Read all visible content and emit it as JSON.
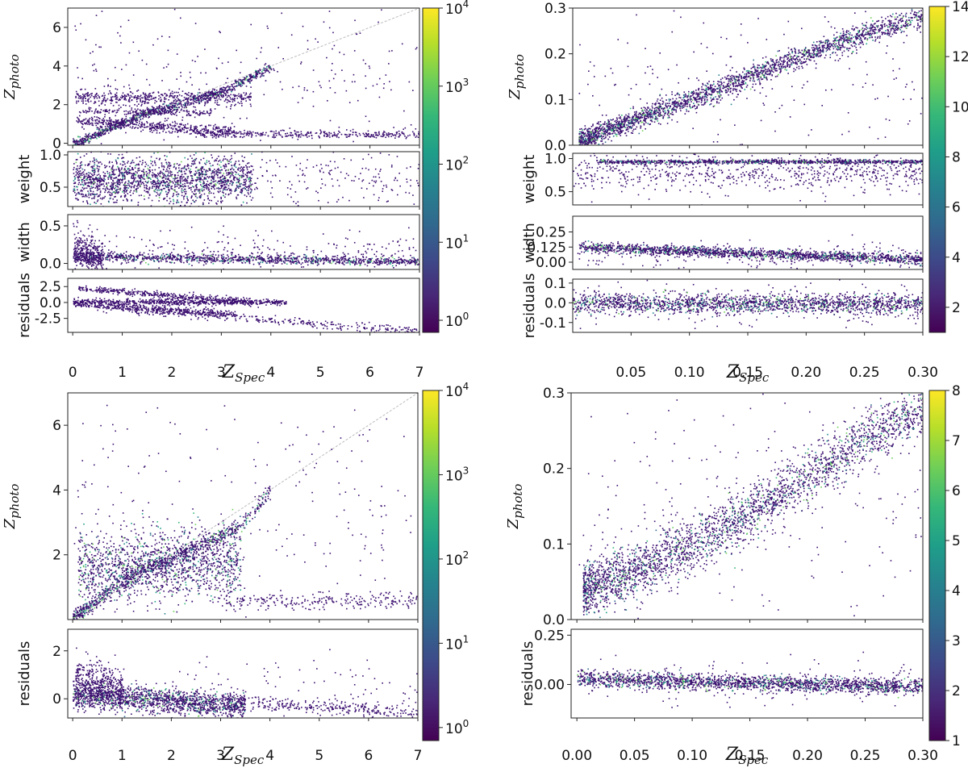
{
  "colors": {
    "viridis": [
      "#440154",
      "#482777",
      "#3e4989",
      "#31688e",
      "#26828e",
      "#1f9e89",
      "#35b779",
      "#6ece58",
      "#b5de2b",
      "#fde725"
    ],
    "point": "#3b0f70",
    "identity_line": "#bbbbbb",
    "axis": "#222222"
  },
  "chart_data": [
    {
      "id": "A",
      "type": "scatter",
      "description_text": "",
      "xlabel_main": "Z",
      "xlabel_sub": "Spec",
      "xlim": [
        -0.1,
        7
      ],
      "xticks": [
        0,
        1,
        2,
        3,
        4,
        5,
        6,
        7
      ],
      "xtick_labels": [
        "0",
        "1",
        "2",
        "3",
        "4",
        "5",
        "6",
        "7"
      ],
      "colorbar": {
        "scale": "log",
        "range": [
          0.7,
          10000
        ],
        "ticks": [
          1,
          10,
          100,
          1000,
          10000
        ],
        "tick_base": [
          "10",
          "10",
          "10",
          "10",
          "10"
        ],
        "tick_exp": [
          "0",
          "1",
          "2",
          "3",
          "4"
        ]
      },
      "panels": [
        {
          "ylabel": "Z",
          "ylabel_sub": "photo",
          "ylim": [
            -0.1,
            7
          ],
          "yticks": [
            0,
            2,
            4,
            6
          ],
          "ytick_labels": [
            "0",
            "2",
            "4",
            "6"
          ],
          "identity_line": true,
          "clusters": [
            {
              "shape": "curve",
              "x": [
                0.0,
                0.5,
                1.0,
                1.5,
                2.0,
                2.5,
                3.0,
                3.5,
                4.0
              ],
              "y": [
                0.0,
                0.5,
                1.1,
                1.6,
                1.9,
                2.3,
                2.7,
                3.3,
                4.0
              ],
              "sd": 0.12,
              "n": 900
            },
            {
              "shape": "band",
              "x": [
                0.05,
                3.6
              ],
              "y": [
                2.4,
                2.4
              ],
              "sd": 0.18,
              "n": 500
            },
            {
              "shape": "band",
              "x": [
                0.05,
                3.3
              ],
              "y": [
                1.2,
                0.6
              ],
              "sd": 0.15,
              "n": 500
            },
            {
              "shape": "band",
              "x": [
                0.1,
                2.8
              ],
              "y": [
                1.7,
                1.6
              ],
              "sd": 0.08,
              "n": 200
            },
            {
              "shape": "band",
              "x": [
                2.5,
                7.0
              ],
              "y": [
                0.5,
                0.5
              ],
              "sd": 0.1,
              "n": 350
            },
            {
              "shape": "band",
              "x": [
                0.0,
                7.0
              ],
              "y": [
                3.5,
                3.5
              ],
              "sd": 2.0,
              "n": 250
            }
          ]
        },
        {
          "ylabel": "weight",
          "ylim": [
            0.2,
            1.05
          ],
          "yticks": [
            0.5,
            1.0
          ],
          "ytick_labels": [
            "0.5",
            "1.0"
          ],
          "clusters": [
            {
              "shape": "band",
              "x": [
                0.0,
                3.6
              ],
              "y": [
                0.62,
                0.62
              ],
              "sd": 0.18,
              "n": 1600
            },
            {
              "shape": "band",
              "x": [
                0.0,
                7.0
              ],
              "y": [
                0.65,
                0.65
              ],
              "sd": 0.2,
              "n": 350
            }
          ]
        },
        {
          "ylabel": "width",
          "ylim": [
            -0.08,
            0.65
          ],
          "yticks": [
            0.0,
            0.5
          ],
          "ytick_labels": [
            "0.0",
            "0.5"
          ],
          "clusters": [
            {
              "shape": "band",
              "x": [
                0.0,
                7.0
              ],
              "y": [
                0.1,
                0.03
              ],
              "sd": 0.03,
              "n": 1100
            },
            {
              "shape": "band",
              "x": [
                0.0,
                0.6
              ],
              "y": [
                0.2,
                0.05
              ],
              "sd": 0.12,
              "n": 350
            },
            {
              "shape": "band",
              "x": [
                0.0,
                7.0
              ],
              "y": [
                0.15,
                0.15
              ],
              "sd": 0.12,
              "n": 250
            }
          ]
        },
        {
          "ylabel": "residuals",
          "ylim": [
            -4.7,
            3.8
          ],
          "yticks": [
            -2.5,
            0.0,
            2.5
          ],
          "ytick_labels": [
            "-2.5",
            "0.0",
            "2.5"
          ],
          "clusters": [
            {
              "shape": "band",
              "x": [
                0.1,
                3.6
              ],
              "y": [
                2.3,
                0.2
              ],
              "sd": 0.25,
              "n": 400
            },
            {
              "shape": "band",
              "x": [
                0.0,
                4.3
              ],
              "y": [
                0.2,
                0.1
              ],
              "sd": 0.25,
              "n": 600
            },
            {
              "shape": "band",
              "x": [
                0.0,
                3.3
              ],
              "y": [
                -0.1,
                -1.8
              ],
              "sd": 0.3,
              "n": 400
            },
            {
              "shape": "band",
              "x": [
                0.5,
                7.0
              ],
              "y": [
                -0.6,
                -4.5
              ],
              "sd": 0.35,
              "n": 350
            }
          ]
        }
      ]
    },
    {
      "id": "B",
      "type": "scatter",
      "xlabel_main": "Z",
      "xlabel_sub": "Spec",
      "xlim": [
        0.0,
        0.3
      ],
      "xticks": [
        0.05,
        0.1,
        0.15,
        0.2,
        0.25,
        0.3
      ],
      "xtick_labels": [
        "0.05",
        "0.10",
        "0.15",
        "0.20",
        "0.25",
        "0.30"
      ],
      "colorbar": {
        "scale": "linear",
        "range": [
          1,
          14
        ],
        "ticks": [
          2,
          4,
          6,
          8,
          10,
          12,
          14
        ],
        "tick_labels": [
          "2",
          "4",
          "6",
          "8",
          "10",
          "12",
          "14"
        ]
      },
      "panels": [
        {
          "ylabel": "Z",
          "ylabel_sub": "photo",
          "ylim": [
            0.0,
            0.3
          ],
          "yticks": [
            0.0,
            0.1,
            0.2,
            0.3
          ],
          "ytick_labels": [
            "0.0",
            "0.1",
            "0.2",
            "0.3"
          ],
          "clusters": [
            {
              "shape": "curve",
              "x": [
                0.005,
                0.05,
                0.1,
                0.15,
                0.2,
                0.25,
                0.3
              ],
              "y": [
                0.01,
                0.055,
                0.1,
                0.15,
                0.2,
                0.245,
                0.28
              ],
              "sd": 0.012,
              "n": 2400
            },
            {
              "shape": "band",
              "x": [
                0.0,
                0.3
              ],
              "y": [
                0.15,
                0.15
              ],
              "sd": 0.09,
              "n": 180
            }
          ]
        },
        {
          "ylabel": "weight",
          "ylim": [
            0.3,
            1.08
          ],
          "yticks": [
            0.5,
            1.0
          ],
          "ytick_labels": [
            "0.5",
            "1.0"
          ],
          "clusters": [
            {
              "shape": "band",
              "x": [
                0.02,
                0.3
              ],
              "y": [
                0.96,
                0.96
              ],
              "sd": 0.015,
              "n": 900
            },
            {
              "shape": "band",
              "x": [
                0.0,
                0.3
              ],
              "y": [
                0.8,
                0.8
              ],
              "sd": 0.14,
              "n": 700
            }
          ]
        },
        {
          "ylabel": "width",
          "ylim": [
            -0.06,
            0.38
          ],
          "yticks": [
            0.0,
            0.125,
            0.25
          ],
          "ytick_labels": [
            "0.00",
            "0.125",
            "0.25"
          ],
          "clusters": [
            {
              "shape": "band",
              "x": [
                0.005,
                0.3
              ],
              "y": [
                0.13,
                0.025
              ],
              "sd": 0.02,
              "n": 1600
            },
            {
              "shape": "band",
              "x": [
                0.0,
                0.3
              ],
              "y": [
                0.05,
                0.05
              ],
              "sd": 0.06,
              "n": 200
            }
          ]
        },
        {
          "ylabel": "residuals",
          "ylim": [
            -0.15,
            0.12
          ],
          "yticks": [
            -0.1,
            0.0,
            0.1
          ],
          "ytick_labels": [
            "-0.1",
            "0.0",
            "0.1"
          ],
          "clusters": [
            {
              "shape": "band",
              "x": [
                0.0,
                0.3
              ],
              "y": [
                0.0,
                -0.005
              ],
              "sd": 0.025,
              "n": 1700
            },
            {
              "shape": "band",
              "x": [
                0.0,
                0.3
              ],
              "y": [
                0.0,
                0.0
              ],
              "sd": 0.06,
              "n": 200
            }
          ]
        }
      ]
    },
    {
      "id": "C",
      "type": "scatter",
      "xlabel_main": "Z",
      "xlabel_sub": "Spec",
      "xlim": [
        -0.1,
        7
      ],
      "xticks": [
        0,
        1,
        2,
        3,
        4,
        5,
        6,
        7
      ],
      "xtick_labels": [
        "0",
        "1",
        "2",
        "3",
        "4",
        "5",
        "6",
        "7"
      ],
      "colorbar": {
        "scale": "log",
        "range": [
          0.7,
          10000
        ],
        "ticks": [
          1,
          10,
          100,
          1000,
          10000
        ],
        "tick_base": [
          "10",
          "10",
          "10",
          "10",
          "10"
        ],
        "tick_exp": [
          "0",
          "1",
          "2",
          "3",
          "4"
        ]
      },
      "panels": [
        {
          "ylabel": "Z",
          "ylabel_sub": "photo",
          "ylim": [
            0.0,
            7
          ],
          "yticks": [
            2,
            4,
            6
          ],
          "ytick_labels": [
            "2",
            "4",
            "6"
          ],
          "identity_line": true,
          "clusters": [
            {
              "shape": "curve",
              "x": [
                0.0,
                0.5,
                1.0,
                1.5,
                2.0,
                2.5,
                3.0,
                3.5,
                4.0
              ],
              "y": [
                0.05,
                0.6,
                1.2,
                1.6,
                1.9,
                2.3,
                2.6,
                3.0,
                4.0
              ],
              "sd": 0.12,
              "n": 800
            },
            {
              "shape": "band",
              "x": [
                0.1,
                3.4
              ],
              "y": [
                1.6,
                1.8
              ],
              "sd": 0.55,
              "n": 1500
            },
            {
              "shape": "band",
              "x": [
                3.0,
                7.0
              ],
              "y": [
                0.6,
                0.6
              ],
              "sd": 0.15,
              "n": 250
            },
            {
              "shape": "band",
              "x": [
                0.0,
                7.0
              ],
              "y": [
                3.5,
                3.5
              ],
              "sd": 2.0,
              "n": 220
            }
          ]
        },
        {
          "ylabel": "residuals",
          "ylim": [
            -0.8,
            2.9
          ],
          "yticks": [
            0,
            2
          ],
          "ytick_labels": [
            "0",
            "2"
          ],
          "clusters": [
            {
              "shape": "band",
              "x": [
                0.0,
                3.5
              ],
              "y": [
                0.2,
                -0.3
              ],
              "sd": 0.25,
              "n": 1500
            },
            {
              "shape": "band",
              "x": [
                0.05,
                1.0
              ],
              "y": [
                0.9,
                0.3
              ],
              "sd": 0.45,
              "n": 400
            },
            {
              "shape": "band",
              "x": [
                3.0,
                7.0
              ],
              "y": [
                -0.1,
                -0.6
              ],
              "sd": 0.15,
              "n": 300
            },
            {
              "shape": "band",
              "x": [
                0.0,
                7.0
              ],
              "y": [
                0.5,
                0.5
              ],
              "sd": 0.7,
              "n": 120
            }
          ]
        }
      ]
    },
    {
      "id": "D",
      "type": "scatter",
      "xlabel_main": "Z",
      "xlabel_sub": "Spec",
      "xlim": [
        -0.005,
        0.3
      ],
      "xticks": [
        0.0,
        0.05,
        0.1,
        0.15,
        0.2,
        0.25,
        0.3
      ],
      "xtick_labels": [
        "0.00",
        "0.05",
        "0.10",
        "0.15",
        "0.20",
        "0.25",
        "0.30"
      ],
      "colorbar": {
        "scale": "linear",
        "range": [
          1,
          8
        ],
        "ticks": [
          1,
          2,
          3,
          4,
          5,
          6,
          7,
          8
        ],
        "tick_labels": [
          "1",
          "2",
          "3",
          "4",
          "5",
          "6",
          "7",
          "8"
        ]
      },
      "panels": [
        {
          "ylabel": "Z",
          "ylabel_sub": "photo",
          "ylim": [
            0.0,
            0.3
          ],
          "yticks": [
            0.0,
            0.1,
            0.2,
            0.3
          ],
          "ytick_labels": [
            "0.0",
            "0.1",
            "0.2",
            "0.3"
          ],
          "clusters": [
            {
              "shape": "curve",
              "x": [
                0.005,
                0.05,
                0.1,
                0.15,
                0.2,
                0.25,
                0.3
              ],
              "y": [
                0.04,
                0.065,
                0.1,
                0.14,
                0.19,
                0.24,
                0.28
              ],
              "sd": 0.018,
              "n": 2800
            },
            {
              "shape": "band",
              "x": [
                0.0,
                0.3
              ],
              "y": [
                0.15,
                0.15
              ],
              "sd": 0.09,
              "n": 220
            }
          ]
        },
        {
          "ylabel": "residuals",
          "ylim": [
            -0.17,
            0.28
          ],
          "yticks": [
            0.0,
            0.25
          ],
          "ytick_labels": [
            "0.00",
            "0.25"
          ],
          "clusters": [
            {
              "shape": "band",
              "x": [
                0.0,
                0.3
              ],
              "y": [
                0.03,
                -0.01
              ],
              "sd": 0.02,
              "n": 1900
            },
            {
              "shape": "band",
              "x": [
                0.0,
                0.3
              ],
              "y": [
                0.03,
                0.03
              ],
              "sd": 0.06,
              "n": 150
            }
          ]
        }
      ]
    }
  ]
}
